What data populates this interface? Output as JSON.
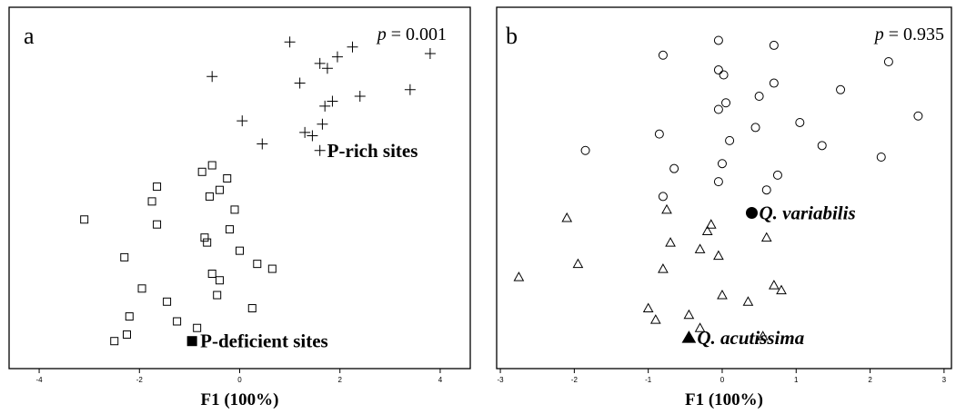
{
  "chart_data": [
    {
      "type": "scatter",
      "panel_letter": "a",
      "p_symbol": "p",
      "p_value": "= 0.001",
      "xlabel": "F1 (100%)",
      "xlim": [
        -4.6,
        4.6
      ],
      "ylim": [
        0,
        1
      ],
      "xticks": [
        "-4",
        "-2",
        "0",
        "2",
        "4"
      ],
      "xtick_values": [
        -4,
        -2,
        0,
        2,
        4
      ],
      "grid": false,
      "series": [
        {
          "name": "P-rich sites",
          "marker": "plus",
          "label_marker": "plus",
          "label_point": {
            "x": 1.6,
            "y": 0.625
          },
          "points": [
            [
              1.0,
              0.955
            ],
            [
              2.25,
              0.94
            ],
            [
              3.8,
              0.92
            ],
            [
              1.95,
              0.91
            ],
            [
              1.6,
              0.89
            ],
            [
              1.75,
              0.875
            ],
            [
              -0.55,
              0.85
            ],
            [
              1.2,
              0.83
            ],
            [
              3.4,
              0.81
            ],
            [
              2.4,
              0.79
            ],
            [
              1.85,
              0.775
            ],
            [
              1.7,
              0.76
            ],
            [
              0.05,
              0.715
            ],
            [
              1.65,
              0.705
            ],
            [
              1.3,
              0.68
            ],
            [
              1.45,
              0.67
            ],
            [
              0.45,
              0.645
            ]
          ]
        },
        {
          "name": "P-deficient sites",
          "marker": "square",
          "label_marker": "filled-square",
          "label_point": {
            "x": -0.95,
            "y": 0.045
          },
          "points": [
            [
              -0.55,
              0.58
            ],
            [
              -0.75,
              0.56
            ],
            [
              -0.25,
              0.54
            ],
            [
              -1.65,
              0.515
            ],
            [
              -0.4,
              0.505
            ],
            [
              -0.6,
              0.485
            ],
            [
              -1.75,
              0.47
            ],
            [
              -0.1,
              0.445
            ],
            [
              -3.1,
              0.415
            ],
            [
              -1.65,
              0.4
            ],
            [
              -0.2,
              0.385
            ],
            [
              -0.7,
              0.36
            ],
            [
              -0.65,
              0.345
            ],
            [
              0.0,
              0.32
            ],
            [
              -2.3,
              0.3
            ],
            [
              0.35,
              0.28
            ],
            [
              0.65,
              0.265
            ],
            [
              -0.55,
              0.25
            ],
            [
              -0.4,
              0.23
            ],
            [
              -1.95,
              0.205
            ],
            [
              -0.45,
              0.185
            ],
            [
              -1.45,
              0.165
            ],
            [
              0.25,
              0.145
            ],
            [
              -2.2,
              0.12
            ],
            [
              -1.25,
              0.105
            ],
            [
              -0.85,
              0.085
            ],
            [
              -2.25,
              0.065
            ],
            [
              -2.5,
              0.045
            ]
          ]
        }
      ]
    },
    {
      "type": "scatter",
      "panel_letter": "b",
      "p_symbol": "p",
      "p_value": "= 0.935",
      "xlabel": "F1 (100%)",
      "xlim": [
        -3.05,
        3.1
      ],
      "ylim": [
        0,
        1
      ],
      "xticks": [
        "-3",
        "-2",
        "-1",
        "0",
        "1",
        "2",
        "3"
      ],
      "xtick_values": [
        -3,
        -2,
        -1,
        0,
        1,
        2,
        3
      ],
      "grid": false,
      "series": [
        {
          "name": "Q. variabilis",
          "marker": "circle",
          "label_marker": "filled-circle",
          "label_point": {
            "x": 0.4,
            "y": 0.435
          },
          "points": [
            [
              -0.05,
              0.96
            ],
            [
              0.7,
              0.945
            ],
            [
              -0.8,
              0.915
            ],
            [
              2.25,
              0.895
            ],
            [
              -0.05,
              0.87
            ],
            [
              0.02,
              0.855
            ],
            [
              0.7,
              0.83
            ],
            [
              1.6,
              0.81
            ],
            [
              0.5,
              0.79
            ],
            [
              0.05,
              0.77
            ],
            [
              -0.05,
              0.75
            ],
            [
              2.65,
              0.73
            ],
            [
              1.05,
              0.71
            ],
            [
              0.45,
              0.695
            ],
            [
              -0.85,
              0.675
            ],
            [
              0.1,
              0.655
            ],
            [
              1.35,
              0.64
            ],
            [
              -1.85,
              0.625
            ],
            [
              2.15,
              0.605
            ],
            [
              0.0,
              0.585
            ],
            [
              -0.65,
              0.57
            ],
            [
              0.75,
              0.55
            ],
            [
              -0.05,
              0.53
            ],
            [
              0.6,
              0.505
            ],
            [
              -0.8,
              0.485
            ]
          ]
        },
        {
          "name": "Q. acutissima",
          "marker": "triangle",
          "label_marker": "filled-triangle",
          "label_point": {
            "x": -0.45,
            "y": 0.055
          },
          "points": [
            [
              -0.75,
              0.445
            ],
            [
              -2.1,
              0.42
            ],
            [
              -0.15,
              0.4
            ],
            [
              -0.2,
              0.38
            ],
            [
              0.6,
              0.36
            ],
            [
              -0.7,
              0.345
            ],
            [
              -0.3,
              0.325
            ],
            [
              -0.05,
              0.305
            ],
            [
              -1.95,
              0.28
            ],
            [
              -0.8,
              0.265
            ],
            [
              -2.75,
              0.24
            ],
            [
              0.7,
              0.215
            ],
            [
              0.8,
              0.2
            ],
            [
              0.0,
              0.185
            ],
            [
              0.35,
              0.165
            ],
            [
              -1.0,
              0.145
            ],
            [
              -0.45,
              0.125
            ],
            [
              -0.9,
              0.11
            ],
            [
              -0.3,
              0.085
            ],
            [
              0.55,
              0.06
            ]
          ]
        }
      ]
    }
  ]
}
